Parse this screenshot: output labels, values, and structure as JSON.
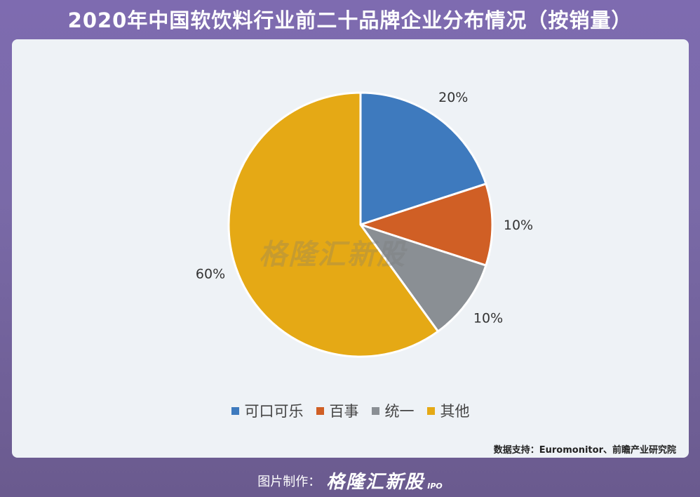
{
  "title": "2020年中国软饮料行业前二十品牌企业分布情况（按销量）",
  "source": "数据支持：Euromonitor、前瞻产业研究院",
  "watermark": "格隆汇新股",
  "footer": {
    "prefix": "图片制作：",
    "brand": "格隆汇新股",
    "sub": "IPO"
  },
  "chart_data": {
    "type": "pie",
    "categories": [
      "可口可乐",
      "百事",
      "统一",
      "其他"
    ],
    "values": [
      20,
      10,
      10,
      60
    ],
    "labels": [
      "20%",
      "10%",
      "10%",
      "60%"
    ],
    "colors": [
      "#3e7abe",
      "#d05f25",
      "#8a8f94",
      "#e5a915"
    ],
    "legend_position": "bottom"
  }
}
